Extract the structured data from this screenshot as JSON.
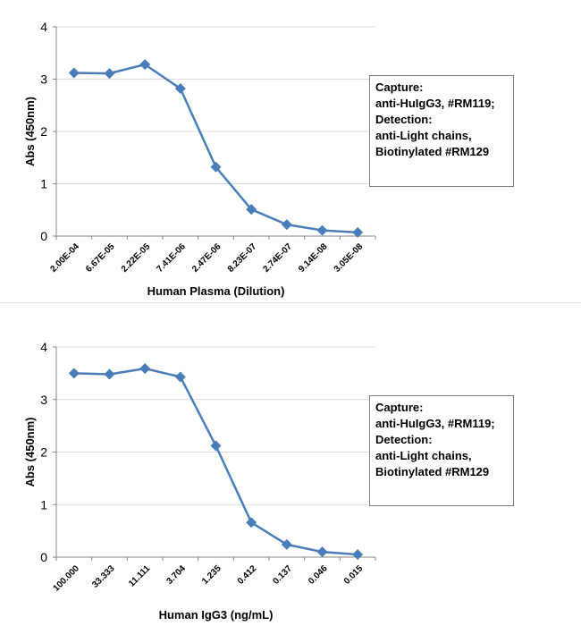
{
  "chart_data": [
    {
      "type": "line",
      "title": "",
      "xlabel": "Human Plasma (Dilution)",
      "ylabel": "Abs (450nm)",
      "ylim": [
        0,
        4
      ],
      "yticks": [
        0,
        1,
        2,
        3,
        4
      ],
      "grid": true,
      "legend_position": "right",
      "categories": [
        "2.00E-04",
        "6.67E-05",
        "2.22E-05",
        "7.41E-06",
        "2.47E-06",
        "8.23E-07",
        "2.74E-07",
        "9.14E-08",
        "3.05E-08"
      ],
      "series": [
        {
          "values": [
            3.12,
            3.11,
            3.28,
            2.82,
            1.32,
            0.51,
            0.22,
            0.11,
            0.07
          ],
          "color": "#4a7ebb"
        }
      ],
      "legend_lines": [
        "Capture:",
        "anti-HuIgG3, #RM119;",
        "Detection:",
        "anti-Light chains,",
        "Biotinylated #RM129"
      ]
    },
    {
      "type": "line",
      "title": "",
      "xlabel": "Human IgG3 (ng/mL)",
      "ylabel": "Abs (450nm)",
      "ylim": [
        0,
        4
      ],
      "yticks": [
        0,
        1,
        2,
        3,
        4
      ],
      "grid": true,
      "legend_position": "right",
      "categories": [
        "100.000",
        "33.333",
        "11.111",
        "3.704",
        "1.235",
        "0.412",
        "0.137",
        "0.046",
        "0.015"
      ],
      "series": [
        {
          "values": [
            3.5,
            3.48,
            3.59,
            3.43,
            2.12,
            0.66,
            0.24,
            0.1,
            0.05
          ],
          "color": "#4a7ebb"
        }
      ],
      "legend_lines": [
        "Capture:",
        "anti-HuIgG3, #RM119;",
        "Detection:",
        "anti-Light chains,",
        "Biotinylated #RM129"
      ]
    }
  ]
}
